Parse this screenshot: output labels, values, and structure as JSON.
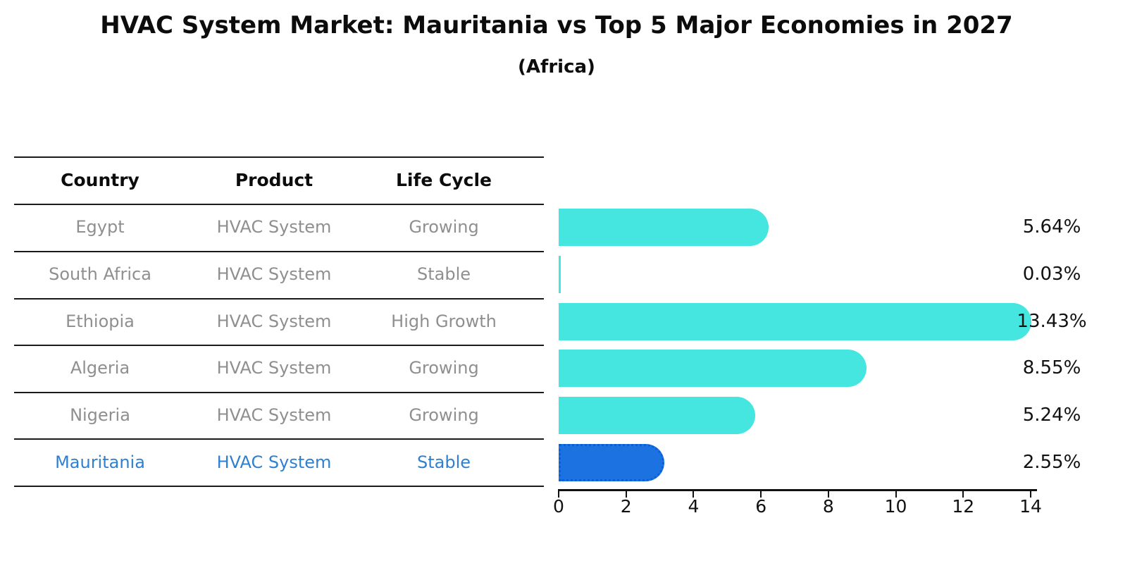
{
  "header": {
    "title": "HVAC System Market: Mauritania vs Top 5 Major Economies in 2027",
    "subtitle": "(Africa)"
  },
  "table": {
    "columns": [
      "Country",
      "Product",
      "Life Cycle"
    ],
    "rows": [
      {
        "country": "Egypt",
        "product": "HVAC System",
        "life_cycle": "Growing",
        "highlight": false
      },
      {
        "country": "South Africa",
        "product": "HVAC System",
        "life_cycle": "Stable",
        "highlight": false
      },
      {
        "country": "Ethiopia",
        "product": "HVAC System",
        "life_cycle": "High Growth",
        "highlight": false
      },
      {
        "country": "Algeria",
        "product": "HVAC System",
        "life_cycle": "Growing",
        "highlight": false
      },
      {
        "country": "Nigeria",
        "product": "HVAC System",
        "life_cycle": "Growing",
        "highlight": true
      },
      {
        "country": "Mauritania",
        "product": "HVAC System",
        "life_cycle": "Stable",
        "highlight": true
      }
    ]
  },
  "chart_data": {
    "type": "bar",
    "orientation": "horizontal",
    "title": "HVAC System Market: Mauritania vs Top 5 Major Economies in 2027",
    "subtitle": "(Africa)",
    "categories": [
      "Egypt",
      "South Africa",
      "Ethiopia",
      "Algeria",
      "Nigeria",
      "Mauritania"
    ],
    "values": [
      5.64,
      0.03,
      13.43,
      8.55,
      5.24,
      2.55
    ],
    "display_values": [
      "5.64%",
      "0.03%",
      "13.43%",
      "8.55%",
      "5.24%",
      "2.55%"
    ],
    "xlabel": "",
    "ylabel": "",
    "xlim": [
      0,
      14
    ],
    "x_ticks": [
      0,
      2,
      4,
      6,
      8,
      10,
      12,
      14
    ],
    "grid": false,
    "legend": false,
    "highlight_index": 5,
    "colors": {
      "bar": "#44e6df",
      "highlight_bar": "#1d72e2",
      "highlight_border": "#0b5fd6",
      "highlight_text": "#3080d0",
      "row_text": "#8f8f8f",
      "axis": "#111111"
    }
  }
}
